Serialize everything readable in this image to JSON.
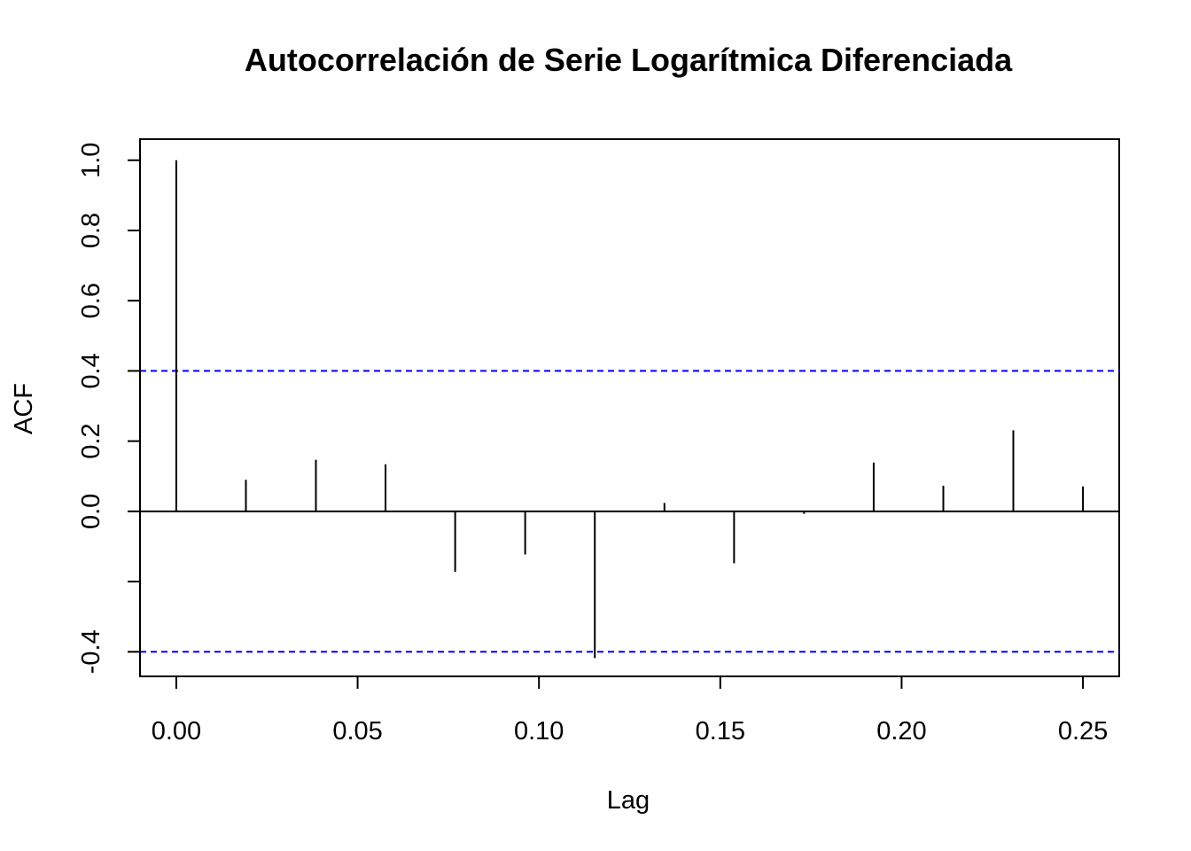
{
  "chart_data": {
    "type": "bar",
    "title": "Autocorrelación de Serie Logarítmica Diferenciada",
    "xlabel": "Lag",
    "ylabel": "ACF",
    "xlim": [
      -0.01,
      0.26
    ],
    "ylim": [
      -0.47,
      1.06
    ],
    "x_ticks": [
      0.0,
      0.05,
      0.1,
      0.15,
      0.2,
      0.25
    ],
    "x_tick_labels": [
      "0.00",
      "0.05",
      "0.10",
      "0.15",
      "0.20",
      "0.25"
    ],
    "y_ticks": [
      -0.4,
      -0.2,
      0.0,
      0.2,
      0.4,
      0.6,
      0.8,
      1.0
    ],
    "y_tick_labels": [
      "-0.4",
      "",
      "0.0",
      "0.2",
      "0.4",
      "0.6",
      "0.8",
      "1.0"
    ],
    "lags": [
      0.0,
      0.0192,
      0.0385,
      0.0577,
      0.0769,
      0.0962,
      0.1154,
      0.1346,
      0.1538,
      0.1731,
      0.1923,
      0.2115,
      0.2308,
      0.25
    ],
    "acf": [
      1.0,
      0.09,
      0.147,
      0.134,
      -0.172,
      -0.123,
      -0.418,
      0.024,
      -0.148,
      -0.007,
      0.139,
      0.073,
      0.231,
      0.071
    ],
    "confidence_bound": 0.4,
    "colors": {
      "bars": "#000000",
      "zero_line": "#000000",
      "confidence": "#0000ff"
    }
  }
}
